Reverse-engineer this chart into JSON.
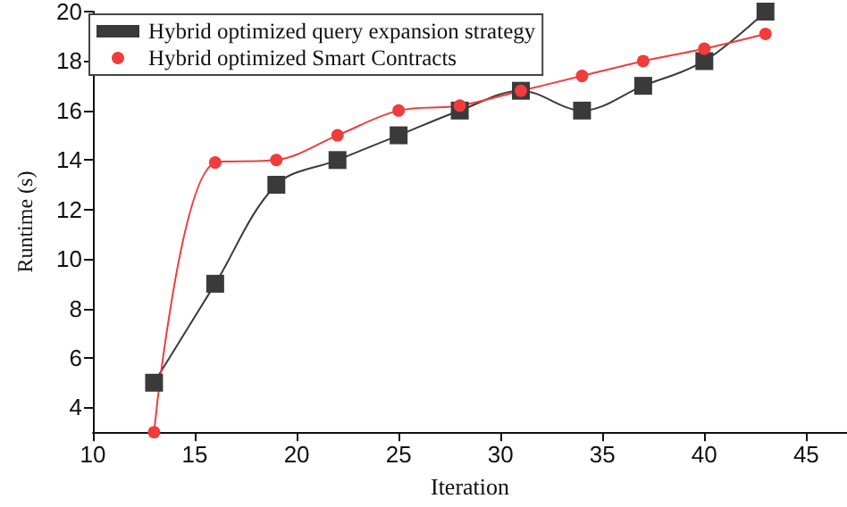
{
  "chart_data": {
    "type": "line",
    "xlabel": "Iteration",
    "ylabel": "Runtime (s)",
    "xlim": [
      10,
      47
    ],
    "xticks": [
      10,
      15,
      20,
      25,
      30,
      35,
      40,
      45
    ],
    "ylim": [
      3,
      20
    ],
    "yticks": [
      4,
      6,
      8,
      10,
      12,
      14,
      16,
      18,
      20
    ],
    "x": [
      13,
      16,
      19,
      22,
      25,
      28,
      31,
      34,
      37,
      40,
      43
    ],
    "legend": "top left",
    "grid": false,
    "line_style": "solid",
    "series": [
      {
        "name": "Hybrid optimized query expansion strategy",
        "color": "#3a3a3a",
        "marker": "square",
        "values": [
          5,
          9,
          13,
          14,
          15,
          16,
          16.8,
          16,
          17,
          18,
          20
        ]
      },
      {
        "name": "Hybrid optimized Smart Contracts",
        "color": "#f03c3c",
        "marker": "circle",
        "values": [
          3,
          13.9,
          14,
          15,
          16,
          16.2,
          16.8,
          17.4,
          18,
          18.5,
          19.1
        ]
      }
    ]
  }
}
